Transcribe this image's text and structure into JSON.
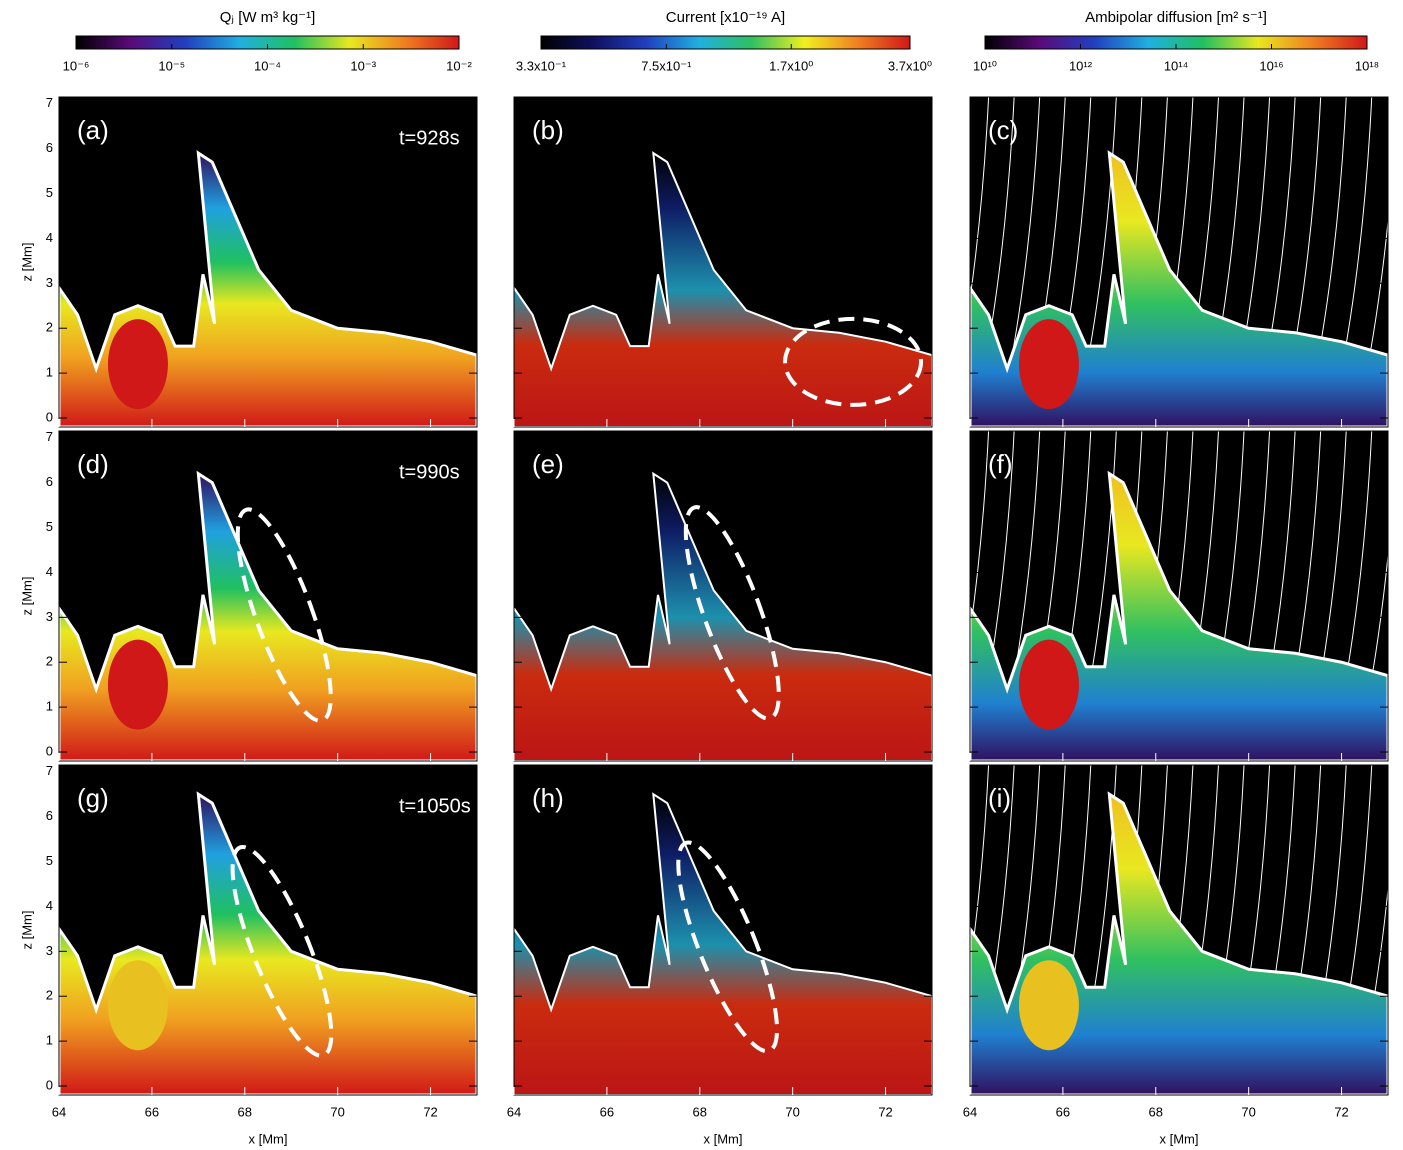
{
  "colorbars": [
    {
      "label": "Qⱼ [W m³ kg⁻¹]",
      "scale": "log",
      "lim": [
        1e-06,
        0.01
      ],
      "ticks": [
        {
          "value": 1e-06,
          "label": "10⁻⁶"
        },
        {
          "value": 1e-05,
          "label": "10⁻⁵"
        },
        {
          "value": 0.0001,
          "label": "10⁻⁴"
        },
        {
          "value": 0.001,
          "label": "10⁻³"
        },
        {
          "value": 0.01,
          "label": "10⁻²"
        }
      ],
      "colors": [
        "#000000",
        "#5a0a7a",
        "#2040c0",
        "#20b0e0",
        "#20c060",
        "#e8e820",
        "#f08020",
        "#d01818"
      ]
    },
    {
      "label": "Current [x10⁻¹⁹ A]",
      "scale": "log",
      "lim": [
        0.33,
        3.7
      ],
      "ticks": [
        {
          "value": 0.33,
          "label": "3.3x10⁻¹"
        },
        {
          "value": 0.75,
          "label": "7.5x10⁻¹"
        },
        {
          "value": 1.7,
          "label": "1.7x10⁰"
        },
        {
          "value": 3.7,
          "label": "3.7x10⁰"
        }
      ],
      "colors": [
        "#000000",
        "#101060",
        "#2040c0",
        "#20b0e0",
        "#30c060",
        "#f0f020",
        "#f08020",
        "#d01818"
      ]
    },
    {
      "label": "Ambipolar diffusion [m² s⁻¹]",
      "scale": "log",
      "lim": [
        10000000000.0,
        1e+18
      ],
      "ticks": [
        {
          "value": 10000000000.0,
          "label": "10¹⁰"
        },
        {
          "value": 1000000000000.0,
          "label": "10¹²"
        },
        {
          "value": 100000000000000.0,
          "label": "10¹⁴"
        },
        {
          "value": 1e+16,
          "label": "10¹⁶"
        },
        {
          "value": 1e+18,
          "label": "10¹⁸"
        }
      ],
      "colors": [
        "#000000",
        "#5a0a7a",
        "#2040c0",
        "#20b0e0",
        "#20c060",
        "#e8e820",
        "#f08020",
        "#d01818"
      ]
    }
  ],
  "panels": [
    {
      "label": "(a)",
      "time": "t=928s"
    },
    {
      "label": "(b)"
    },
    {
      "label": "(c)"
    },
    {
      "label": "(d)",
      "time": "t=990s"
    },
    {
      "label": "(e)"
    },
    {
      "label": "(f)"
    },
    {
      "label": "(g)",
      "time": "t=1050s"
    },
    {
      "label": "(h)"
    },
    {
      "label": "(i)"
    }
  ],
  "x_axis": {
    "label": "x [Mm]",
    "lim": [
      64,
      73
    ],
    "ticks": [
      64,
      66,
      68,
      70,
      72
    ]
  },
  "y_axis": {
    "label": "z [Mm]",
    "lim": [
      -0.2,
      7.15
    ],
    "ticks": [
      0,
      1,
      2,
      3,
      4,
      5,
      6,
      7
    ]
  }
}
